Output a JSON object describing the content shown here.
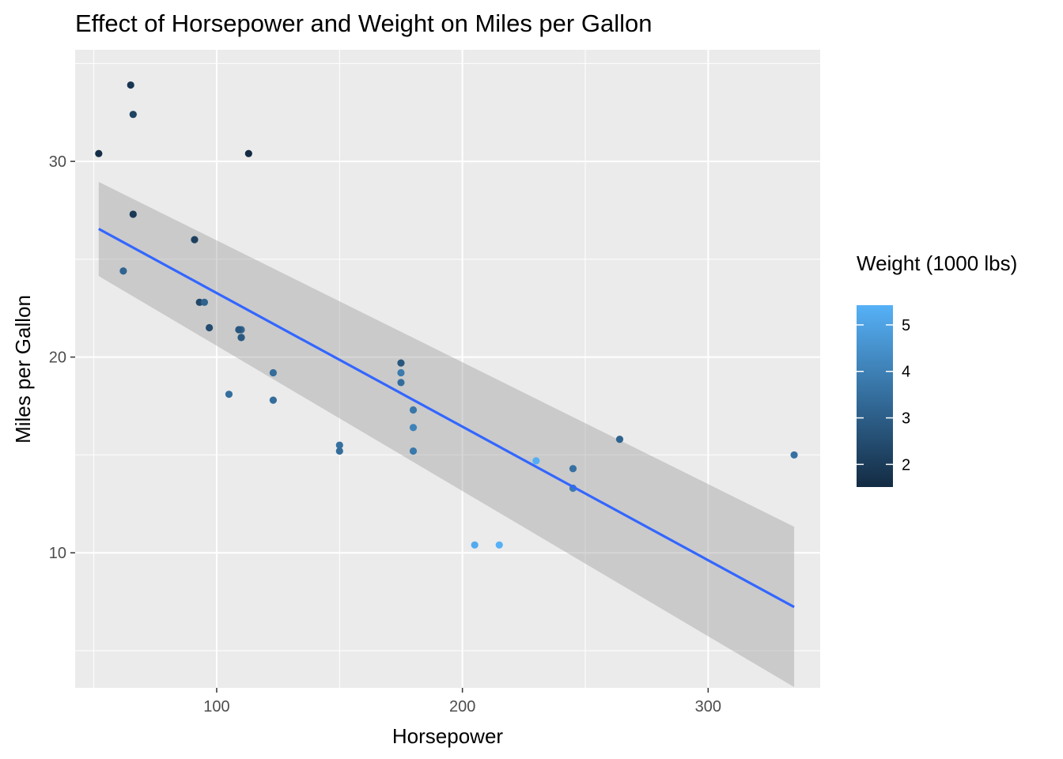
{
  "chart_data": {
    "type": "scatter",
    "title": "Effect of Horsepower and Weight on Miles per Gallon",
    "xlabel": "Horsepower",
    "ylabel": "Miles per Gallon",
    "xlim": [
      42.4,
      345.6
    ],
    "ylim": [
      3.1,
      35.7
    ],
    "x_breaks": [
      100,
      200,
      300
    ],
    "x_minor_breaks": [
      50,
      150,
      250
    ],
    "y_breaks": [
      10,
      20,
      30
    ],
    "y_minor_breaks": [
      5,
      15,
      25,
      35
    ],
    "grid": true,
    "legend": {
      "title": "Weight (1000 lbs)",
      "placement": "right",
      "range": [
        1.513,
        5.424
      ],
      "breaks": [
        2,
        3,
        4,
        5
      ],
      "color_low": "#132B43",
      "color_high": "#56B1F7"
    },
    "points": [
      {
        "x": 110,
        "y": 21.0,
        "w": 2.62
      },
      {
        "x": 110,
        "y": 21.0,
        "w": 2.875
      },
      {
        "x": 93,
        "y": 22.8,
        "w": 2.32
      },
      {
        "x": 110,
        "y": 21.4,
        "w": 3.215
      },
      {
        "x": 175,
        "y": 18.7,
        "w": 3.44
      },
      {
        "x": 105,
        "y": 18.1,
        "w": 3.46
      },
      {
        "x": 245,
        "y": 14.3,
        "w": 3.57
      },
      {
        "x": 62,
        "y": 24.4,
        "w": 3.19
      },
      {
        "x": 95,
        "y": 22.8,
        "w": 3.15
      },
      {
        "x": 123,
        "y": 19.2,
        "w": 3.44
      },
      {
        "x": 123,
        "y": 17.8,
        "w": 3.44
      },
      {
        "x": 180,
        "y": 16.4,
        "w": 4.07
      },
      {
        "x": 180,
        "y": 17.3,
        "w": 3.73
      },
      {
        "x": 180,
        "y": 15.2,
        "w": 3.78
      },
      {
        "x": 205,
        "y": 10.4,
        "w": 5.25
      },
      {
        "x": 215,
        "y": 10.4,
        "w": 5.424
      },
      {
        "x": 230,
        "y": 14.7,
        "w": 5.345
      },
      {
        "x": 66,
        "y": 32.4,
        "w": 2.2
      },
      {
        "x": 52,
        "y": 30.4,
        "w": 1.615
      },
      {
        "x": 65,
        "y": 33.9,
        "w": 1.835
      },
      {
        "x": 97,
        "y": 21.5,
        "w": 2.465
      },
      {
        "x": 150,
        "y": 15.5,
        "w": 3.52
      },
      {
        "x": 150,
        "y": 15.2,
        "w": 3.435
      },
      {
        "x": 245,
        "y": 13.3,
        "w": 3.84
      },
      {
        "x": 175,
        "y": 19.2,
        "w": 3.845
      },
      {
        "x": 66,
        "y": 27.3,
        "w": 1.935
      },
      {
        "x": 91,
        "y": 26.0,
        "w": 2.14
      },
      {
        "x": 113,
        "y": 30.4,
        "w": 1.513
      },
      {
        "x": 264,
        "y": 15.8,
        "w": 3.17
      },
      {
        "x": 175,
        "y": 19.7,
        "w": 2.77
      },
      {
        "x": 335,
        "y": 15.0,
        "w": 3.57
      },
      {
        "x": 109,
        "y": 21.4,
        "w": 2.78
      }
    ],
    "smooth": {
      "method": "lm",
      "x": [
        52,
        335
      ],
      "y": [
        26.55,
        7.23
      ],
      "band_lower": [
        24.14,
        3.14
      ],
      "band_upper": [
        28.95,
        11.33
      ],
      "line_color": "#3366FF",
      "band_color": "#999999"
    }
  }
}
